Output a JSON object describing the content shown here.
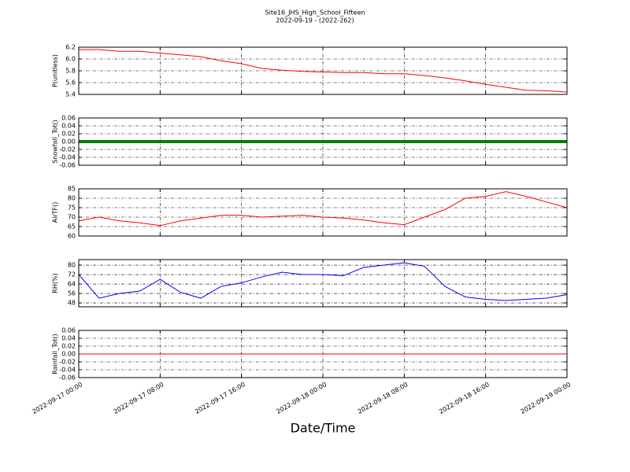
{
  "chart_data": [
    {
      "type": "line",
      "title": "Site16_JHS_High_School_Fifteen",
      "subtitle": "2022-09-19 - (2022-262)",
      "ylabel": "P(unitless)",
      "xlim": [
        "2022-09-17 00:00",
        "2022-09-19 00:00"
      ],
      "ylim": [
        5.4,
        6.2
      ],
      "yticks": [
        5.4,
        5.6,
        5.8,
        {
          "value": 6,
          "label": "6.0"
        },
        6.2
      ],
      "grid": true,
      "x": [
        "2022-09-17 00:00",
        "2022-09-17 02:00",
        "2022-09-17 04:00",
        "2022-09-17 06:00",
        "2022-09-17 08:00",
        "2022-09-17 10:00",
        "2022-09-17 12:00",
        "2022-09-17 14:00",
        "2022-09-17 16:00",
        "2022-09-17 18:00",
        "2022-09-17 20:00",
        "2022-09-17 22:00",
        "2022-09-18 00:00",
        "2022-09-18 02:00",
        "2022-09-18 04:00",
        "2022-09-18 06:00",
        "2022-09-18 08:00",
        "2022-09-18 10:00",
        "2022-09-18 12:00",
        "2022-09-18 14:00",
        "2022-09-18 16:00",
        "2022-09-18 18:00",
        "2022-09-18 20:00",
        "2022-09-18 22:00",
        "2022-09-19 00:00"
      ],
      "series": [
        {
          "name": "P",
          "color": "#ff0000",
          "values": [
            6.16,
            6.16,
            6.13,
            6.13,
            6.1,
            6.07,
            6.04,
            5.97,
            5.92,
            5.84,
            5.81,
            5.79,
            5.78,
            5.77,
            5.77,
            5.75,
            5.75,
            5.72,
            5.68,
            5.63,
            5.57,
            5.52,
            5.47,
            5.46,
            5.44
          ]
        }
      ]
    },
    {
      "type": "line",
      "ylabel": "Snowfall_Tot()",
      "xlim": [
        "2022-09-17 00:00",
        "2022-09-19 00:00"
      ],
      "ylim": [
        -0.06,
        0.06
      ],
      "yticks": [
        -0.06,
        -0.04,
        -0.02,
        {
          "value": 0,
          "label": "0.00"
        },
        0.02,
        0.04,
        0.06
      ],
      "grid": true,
      "x": [
        "2022-09-17 00:00",
        "2022-09-17 02:00",
        "2022-09-17 04:00",
        "2022-09-17 06:00",
        "2022-09-17 08:00",
        "2022-09-17 10:00",
        "2022-09-17 12:00",
        "2022-09-17 14:00",
        "2022-09-17 16:00",
        "2022-09-17 18:00",
        "2022-09-17 20:00",
        "2022-09-17 22:00",
        "2022-09-18 00:00",
        "2022-09-18 02:00",
        "2022-09-18 04:00",
        "2022-09-18 06:00",
        "2022-09-18 08:00",
        "2022-09-18 10:00",
        "2022-09-18 12:00",
        "2022-09-18 14:00",
        "2022-09-18 16:00",
        "2022-09-18 18:00",
        "2022-09-18 20:00",
        "2022-09-18 22:00",
        "2022-09-19 00:00"
      ],
      "series": [
        {
          "name": "Snowfall_Tot",
          "color": "#008000",
          "values": [
            0,
            0,
            0,
            0,
            0,
            0,
            0,
            0,
            0,
            0,
            0,
            0,
            0,
            0,
            0,
            0,
            0,
            0,
            0,
            0,
            0,
            0,
            0,
            0,
            0
          ]
        }
      ]
    },
    {
      "type": "line",
      "ylabel": "AirTF()",
      "xlim": [
        "2022-09-17 00:00",
        "2022-09-19 00:00"
      ],
      "ylim": [
        60,
        85
      ],
      "yticks": [
        60,
        65,
        70,
        75,
        80,
        85
      ],
      "grid": true,
      "x": [
        "2022-09-17 00:00",
        "2022-09-17 02:00",
        "2022-09-17 04:00",
        "2022-09-17 06:00",
        "2022-09-17 08:00",
        "2022-09-17 10:00",
        "2022-09-17 12:00",
        "2022-09-17 14:00",
        "2022-09-17 16:00",
        "2022-09-17 18:00",
        "2022-09-17 20:00",
        "2022-09-17 22:00",
        "2022-09-18 00:00",
        "2022-09-18 02:00",
        "2022-09-18 04:00",
        "2022-09-18 06:00",
        "2022-09-18 08:00",
        "2022-09-18 10:00",
        "2022-09-18 12:00",
        "2022-09-18 14:00",
        "2022-09-18 16:00",
        "2022-09-18 18:00",
        "2022-09-18 20:00",
        "2022-09-18 22:00",
        "2022-09-19 00:00"
      ],
      "series": [
        {
          "name": "AirTF",
          "color": "#ff0000",
          "values": [
            68,
            70,
            68,
            67,
            65.5,
            68,
            69.5,
            71,
            71,
            70,
            70.5,
            71,
            70,
            69.5,
            68.5,
            67,
            66,
            70,
            74,
            80,
            81,
            83.5,
            81,
            78,
            75
          ]
        }
      ]
    },
    {
      "type": "line",
      "ylabel": "RH(%)",
      "xlim": [
        "2022-09-17 00:00",
        "2022-09-19 00:00"
      ],
      "ylim": [
        44.7,
        84.7
      ],
      "yticks": [
        48,
        56,
        64,
        72,
        80
      ],
      "grid": true,
      "x": [
        "2022-09-17 00:00",
        "2022-09-17 02:00",
        "2022-09-17 04:00",
        "2022-09-17 06:00",
        "2022-09-17 08:00",
        "2022-09-17 10:00",
        "2022-09-17 12:00",
        "2022-09-17 14:00",
        "2022-09-17 16:00",
        "2022-09-17 18:00",
        "2022-09-17 20:00",
        "2022-09-17 22:00",
        "2022-09-18 00:00",
        "2022-09-18 02:00",
        "2022-09-18 04:00",
        "2022-09-18 06:00",
        "2022-09-18 08:00",
        "2022-09-18 10:00",
        "2022-09-18 12:00",
        "2022-09-18 14:00",
        "2022-09-18 16:00",
        "2022-09-18 18:00",
        "2022-09-18 20:00",
        "2022-09-18 22:00",
        "2022-09-19 00:00"
      ],
      "series": [
        {
          "name": "RH",
          "color": "#0000ff",
          "values": [
            72,
            52,
            56,
            58,
            68,
            57,
            52,
            62,
            65,
            70,
            74,
            72,
            72,
            71,
            78,
            80,
            82,
            79,
            62,
            53,
            51,
            50,
            51,
            52,
            55
          ]
        }
      ]
    },
    {
      "type": "line",
      "ylabel": "Rainfall_Tot()",
      "xlabel": "Date/Time",
      "xlim": [
        "2022-09-17 00:00",
        "2022-09-19 00:00"
      ],
      "ylim": [
        -0.06,
        0.06
      ],
      "yticks": [
        -0.06,
        -0.04,
        -0.02,
        {
          "value": 0,
          "label": "0.00"
        },
        0.02,
        0.04,
        0.06
      ],
      "grid": true,
      "xticks": [
        "2022-09-17 00:00",
        "2022-09-17 08:00",
        "2022-09-17 16:00",
        "2022-09-18 00:00",
        "2022-09-18 08:00",
        "2022-09-18 16:00",
        "2022-09-19 00:00"
      ],
      "x": [
        "2022-09-17 00:00",
        "2022-09-17 02:00",
        "2022-09-17 04:00",
        "2022-09-17 06:00",
        "2022-09-17 08:00",
        "2022-09-17 10:00",
        "2022-09-17 12:00",
        "2022-09-17 14:00",
        "2022-09-17 16:00",
        "2022-09-17 18:00",
        "2022-09-17 20:00",
        "2022-09-17 22:00",
        "2022-09-18 00:00",
        "2022-09-18 02:00",
        "2022-09-18 04:00",
        "2022-09-18 06:00",
        "2022-09-18 08:00",
        "2022-09-18 10:00",
        "2022-09-18 12:00",
        "2022-09-18 14:00",
        "2022-09-18 16:00",
        "2022-09-18 18:00",
        "2022-09-18 20:00",
        "2022-09-18 22:00",
        "2022-09-19 00:00"
      ],
      "series": [
        {
          "name": "Rainfall_Tot",
          "color": "#ff0000",
          "values": [
            0,
            0,
            0,
            0,
            0,
            0,
            0,
            0,
            0,
            0,
            0,
            0,
            0,
            0,
            0,
            0,
            0,
            0,
            0,
            0,
            0,
            0,
            0,
            0,
            0
          ]
        }
      ]
    }
  ]
}
